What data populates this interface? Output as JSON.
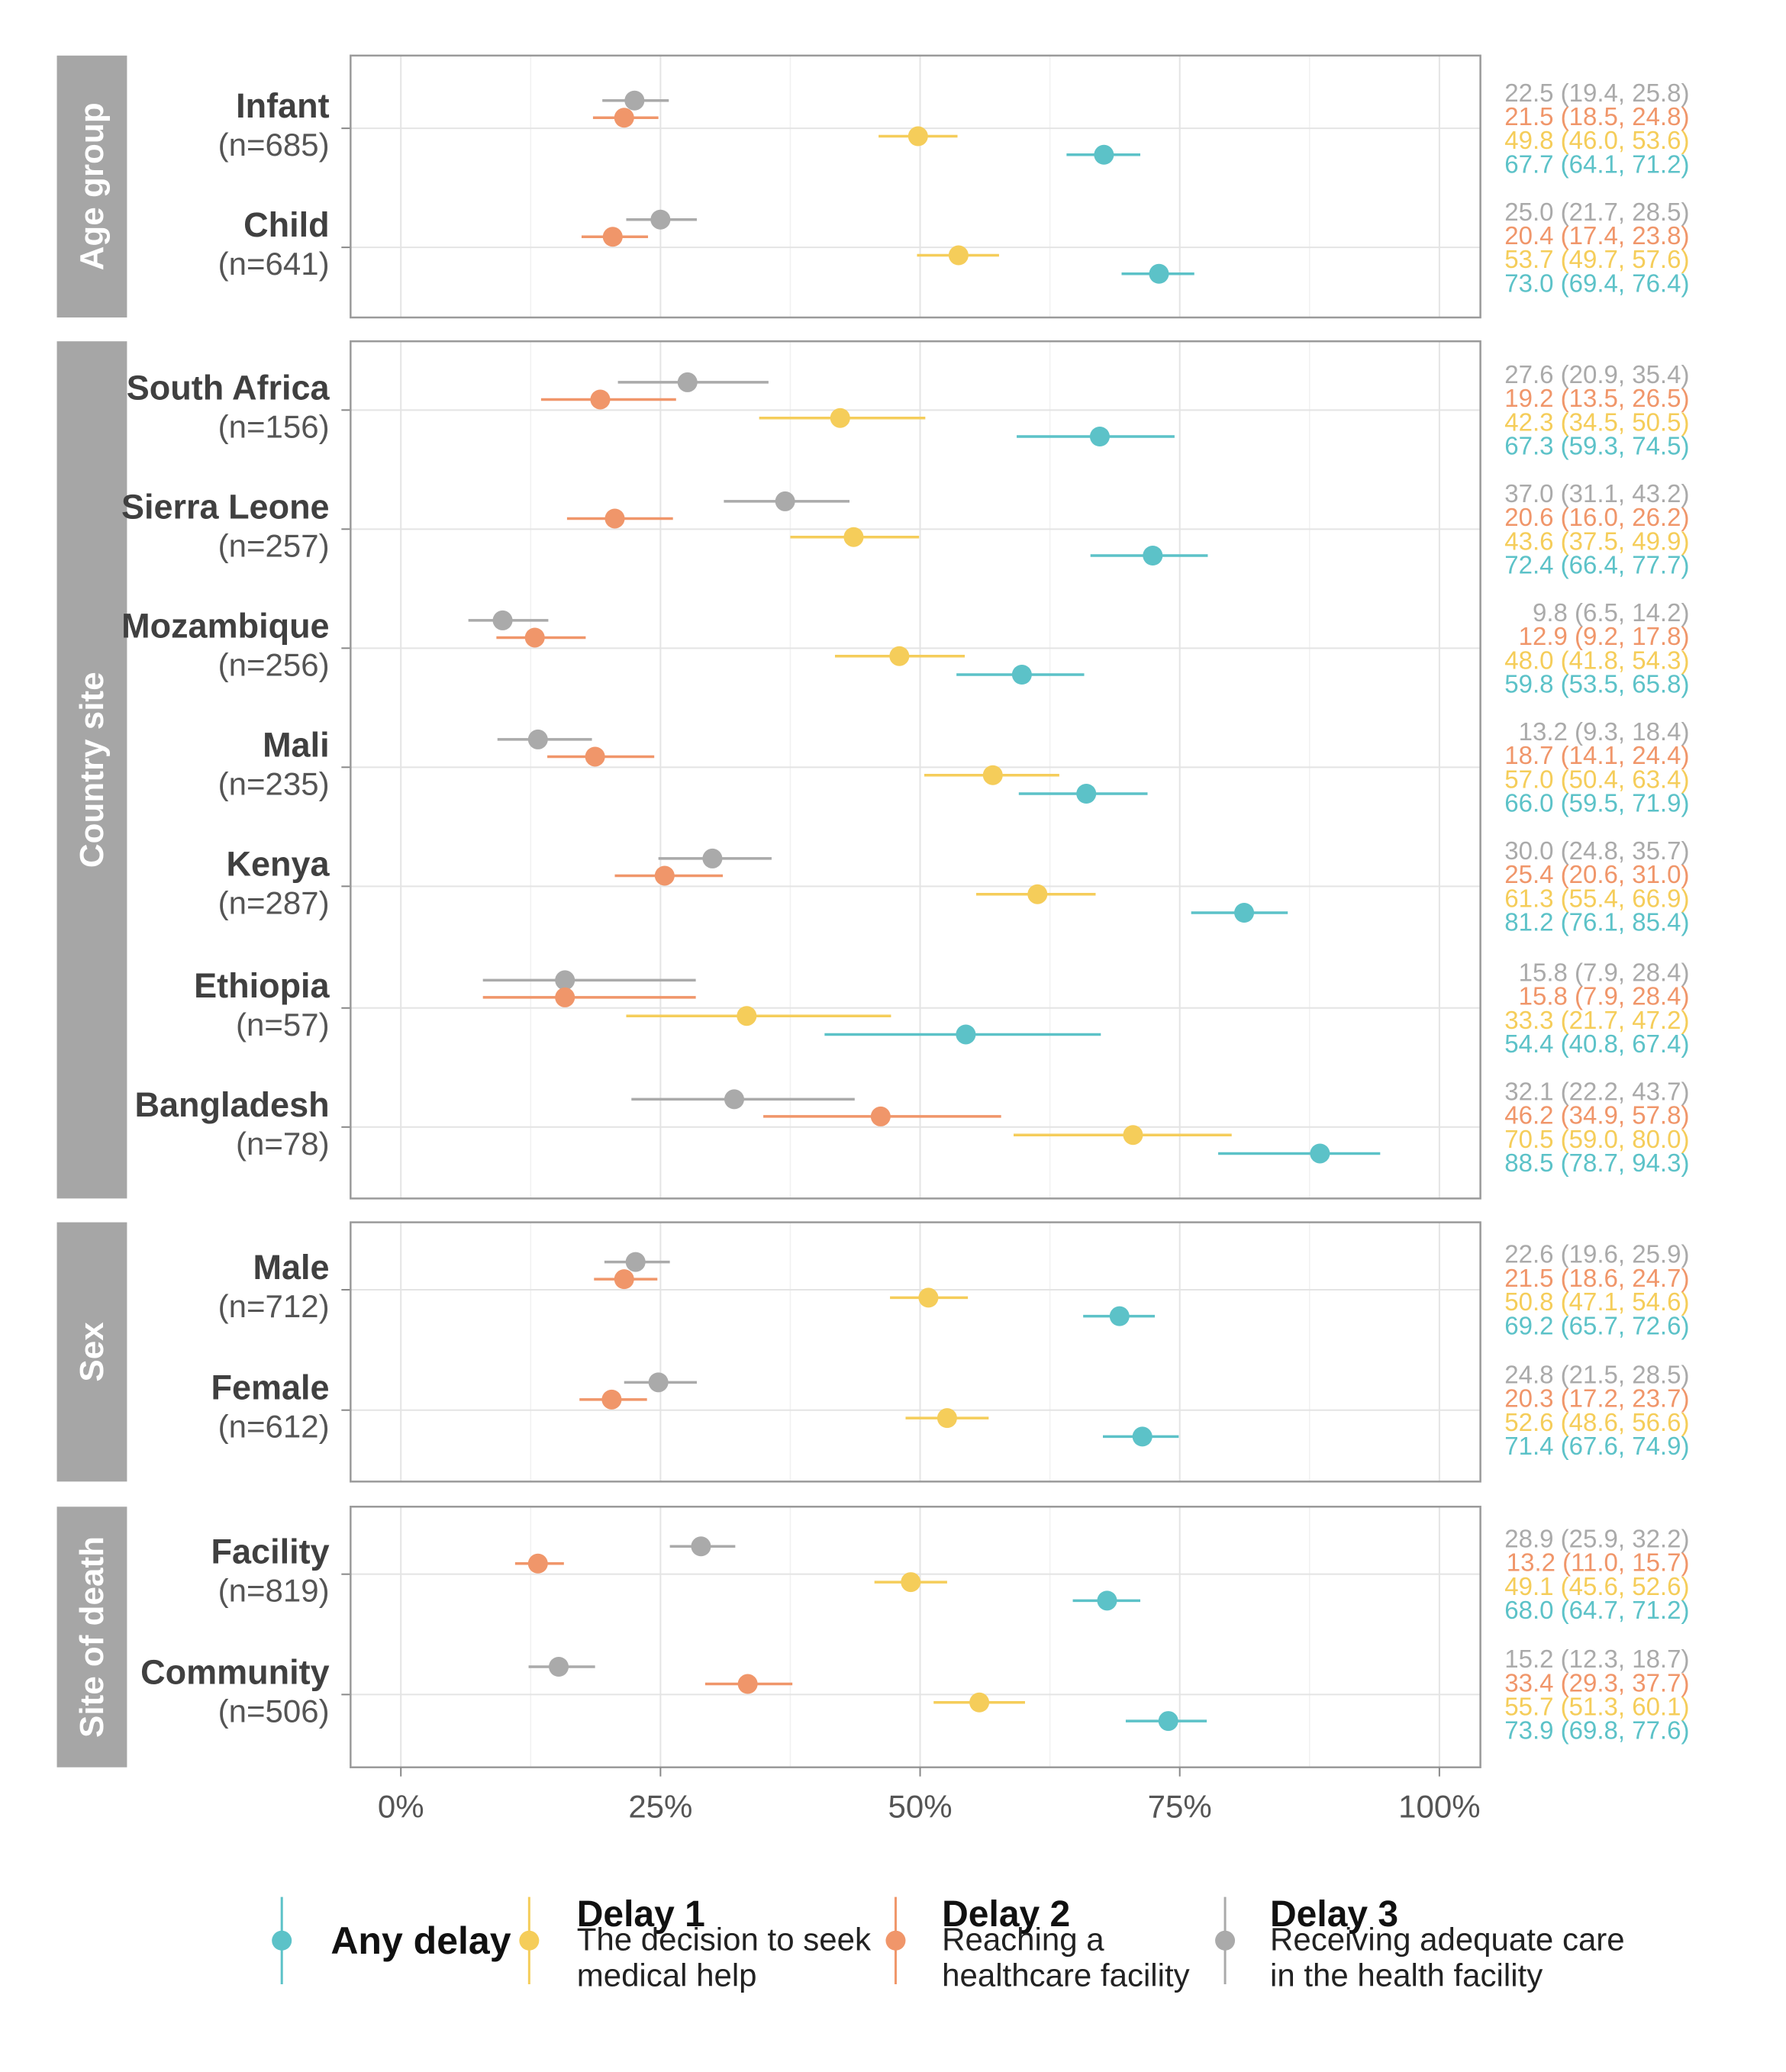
{
  "chart_data": {
    "type": "forest",
    "x_ticks": [
      "0%",
      "25%",
      "50%",
      "75%",
      "100%"
    ],
    "xlim": [
      0,
      100
    ],
    "grid": true,
    "legend_position": "bottom",
    "series": [
      {
        "key": "delay3",
        "name": "Delay 3",
        "description_lines": [
          "Receiving adequate care",
          "in the health facility"
        ],
        "color": "#aaaaaa"
      },
      {
        "key": "delay2",
        "name": "Delay 2",
        "description_lines": [
          "Reaching a",
          "healthcare facility"
        ],
        "color": "#f0966a"
      },
      {
        "key": "delay1",
        "name": "Delay 1",
        "description_lines": [
          "The decision to seek",
          "medical help"
        ],
        "color": "#f5cd5a"
      },
      {
        "key": "any",
        "name": "Any delay",
        "description_lines": [],
        "color": "#5cc2c8"
      }
    ],
    "legend_order": [
      "any",
      "delay1",
      "delay2",
      "delay3"
    ],
    "panels": [
      {
        "strip_label": "Age group",
        "groups": [
          {
            "name": "Infant",
            "n": "(n=685)",
            "estimates": [
              {
                "series": "delay3",
                "value": 22.5,
                "low": 19.4,
                "high": 25.8,
                "label": "22.5 (19.4, 25.8)"
              },
              {
                "series": "delay2",
                "value": 21.5,
                "low": 18.5,
                "high": 24.8,
                "label": "21.5 (18.5, 24.8)"
              },
              {
                "series": "delay1",
                "value": 49.8,
                "low": 46.0,
                "high": 53.6,
                "label": "49.8 (46.0, 53.6)"
              },
              {
                "series": "any",
                "value": 67.7,
                "low": 64.1,
                "high": 71.2,
                "label": "67.7 (64.1, 71.2)"
              }
            ]
          },
          {
            "name": "Child",
            "n": "(n=641)",
            "estimates": [
              {
                "series": "delay3",
                "value": 25.0,
                "low": 21.7,
                "high": 28.5,
                "label": "25.0 (21.7, 28.5)"
              },
              {
                "series": "delay2",
                "value": 20.4,
                "low": 17.4,
                "high": 23.8,
                "label": "20.4 (17.4, 23.8)"
              },
              {
                "series": "delay1",
                "value": 53.7,
                "low": 49.7,
                "high": 57.6,
                "label": "53.7 (49.7, 57.6)"
              },
              {
                "series": "any",
                "value": 73.0,
                "low": 69.4,
                "high": 76.4,
                "label": "73.0 (69.4, 76.4)"
              }
            ]
          }
        ]
      },
      {
        "strip_label": "Country site",
        "groups": [
          {
            "name": "South Africa",
            "n": "(n=156)",
            "estimates": [
              {
                "series": "delay3",
                "value": 27.6,
                "low": 20.9,
                "high": 35.4,
                "label": "27.6 (20.9, 35.4)"
              },
              {
                "series": "delay2",
                "value": 19.2,
                "low": 13.5,
                "high": 26.5,
                "label": "19.2 (13.5, 26.5)"
              },
              {
                "series": "delay1",
                "value": 42.3,
                "low": 34.5,
                "high": 50.5,
                "label": "42.3 (34.5, 50.5)"
              },
              {
                "series": "any",
                "value": 67.3,
                "low": 59.3,
                "high": 74.5,
                "label": "67.3 (59.3, 74.5)"
              }
            ]
          },
          {
            "name": "Sierra Leone",
            "n": "(n=257)",
            "estimates": [
              {
                "series": "delay3",
                "value": 37.0,
                "low": 31.1,
                "high": 43.2,
                "label": "37.0 (31.1, 43.2)"
              },
              {
                "series": "delay2",
                "value": 20.6,
                "low": 16.0,
                "high": 26.2,
                "label": "20.6 (16.0, 26.2)"
              },
              {
                "series": "delay1",
                "value": 43.6,
                "low": 37.5,
                "high": 49.9,
                "label": "43.6 (37.5, 49.9)"
              },
              {
                "series": "any",
                "value": 72.4,
                "low": 66.4,
                "high": 77.7,
                "label": "72.4 (66.4, 77.7)"
              }
            ]
          },
          {
            "name": "Mozambique",
            "n": "(n=256)",
            "estimates": [
              {
                "series": "delay3",
                "value": 9.8,
                "low": 6.5,
                "high": 14.2,
                "label": "9.8 (6.5, 14.2)"
              },
              {
                "series": "delay2",
                "value": 12.9,
                "low": 9.2,
                "high": 17.8,
                "label": "12.9 (9.2, 17.8)"
              },
              {
                "series": "delay1",
                "value": 48.0,
                "low": 41.8,
                "high": 54.3,
                "label": "48.0 (41.8, 54.3)"
              },
              {
                "series": "any",
                "value": 59.8,
                "low": 53.5,
                "high": 65.8,
                "label": "59.8 (53.5, 65.8)"
              }
            ]
          },
          {
            "name": "Mali",
            "n": "(n=235)",
            "estimates": [
              {
                "series": "delay3",
                "value": 13.2,
                "low": 9.3,
                "high": 18.4,
                "label": "13.2 (9.3, 18.4)"
              },
              {
                "series": "delay2",
                "value": 18.7,
                "low": 14.1,
                "high": 24.4,
                "label": "18.7 (14.1, 24.4)"
              },
              {
                "series": "delay1",
                "value": 57.0,
                "low": 50.4,
                "high": 63.4,
                "label": "57.0 (50.4, 63.4)"
              },
              {
                "series": "any",
                "value": 66.0,
                "low": 59.5,
                "high": 71.9,
                "label": "66.0 (59.5, 71.9)"
              }
            ]
          },
          {
            "name": "Kenya",
            "n": "(n=287)",
            "estimates": [
              {
                "series": "delay3",
                "value": 30.0,
                "low": 24.8,
                "high": 35.7,
                "label": "30.0 (24.8, 35.7)"
              },
              {
                "series": "delay2",
                "value": 25.4,
                "low": 20.6,
                "high": 31.0,
                "label": "25.4 (20.6, 31.0)"
              },
              {
                "series": "delay1",
                "value": 61.3,
                "low": 55.4,
                "high": 66.9,
                "label": "61.3 (55.4, 66.9)"
              },
              {
                "series": "any",
                "value": 81.2,
                "low": 76.1,
                "high": 85.4,
                "label": "81.2 (76.1, 85.4)"
              }
            ]
          },
          {
            "name": "Ethiopia",
            "n": "(n=57)",
            "estimates": [
              {
                "series": "delay3",
                "value": 15.8,
                "low": 7.9,
                "high": 28.4,
                "label": "15.8 (7.9, 28.4)"
              },
              {
                "series": "delay2",
                "value": 15.8,
                "low": 7.9,
                "high": 28.4,
                "label": "15.8 (7.9, 28.4)"
              },
              {
                "series": "delay1",
                "value": 33.3,
                "low": 21.7,
                "high": 47.2,
                "label": "33.3 (21.7, 47.2)"
              },
              {
                "series": "any",
                "value": 54.4,
                "low": 40.8,
                "high": 67.4,
                "label": "54.4 (40.8, 67.4)"
              }
            ]
          },
          {
            "name": "Bangladesh",
            "n": "(n=78)",
            "estimates": [
              {
                "series": "delay3",
                "value": 32.1,
                "low": 22.2,
                "high": 43.7,
                "label": "32.1 (22.2, 43.7)"
              },
              {
                "series": "delay2",
                "value": 46.2,
                "low": 34.9,
                "high": 57.8,
                "label": "46.2 (34.9, 57.8)"
              },
              {
                "series": "delay1",
                "value": 70.5,
                "low": 59.0,
                "high": 80.0,
                "label": "70.5 (59.0, 80.0)"
              },
              {
                "series": "any",
                "value": 88.5,
                "low": 78.7,
                "high": 94.3,
                "label": "88.5 (78.7, 94.3)"
              }
            ]
          }
        ]
      },
      {
        "strip_label": "Sex",
        "groups": [
          {
            "name": "Male",
            "n": "(n=712)",
            "estimates": [
              {
                "series": "delay3",
                "value": 22.6,
                "low": 19.6,
                "high": 25.9,
                "label": "22.6 (19.6, 25.9)"
              },
              {
                "series": "delay2",
                "value": 21.5,
                "low": 18.6,
                "high": 24.7,
                "label": "21.5 (18.6, 24.7)"
              },
              {
                "series": "delay1",
                "value": 50.8,
                "low": 47.1,
                "high": 54.6,
                "label": "50.8 (47.1, 54.6)"
              },
              {
                "series": "any",
                "value": 69.2,
                "low": 65.7,
                "high": 72.6,
                "label": "69.2 (65.7, 72.6)"
              }
            ]
          },
          {
            "name": "Female",
            "n": "(n=612)",
            "estimates": [
              {
                "series": "delay3",
                "value": 24.8,
                "low": 21.5,
                "high": 28.5,
                "label": "24.8 (21.5, 28.5)"
              },
              {
                "series": "delay2",
                "value": 20.3,
                "low": 17.2,
                "high": 23.7,
                "label": "20.3 (17.2, 23.7)"
              },
              {
                "series": "delay1",
                "value": 52.6,
                "low": 48.6,
                "high": 56.6,
                "label": "52.6 (48.6, 56.6)"
              },
              {
                "series": "any",
                "value": 71.4,
                "low": 67.6,
                "high": 74.9,
                "label": "71.4 (67.6, 74.9)"
              }
            ]
          }
        ]
      },
      {
        "strip_label": "Site of death",
        "groups": [
          {
            "name": "Facility",
            "n": "(n=819)",
            "estimates": [
              {
                "series": "delay3",
                "value": 28.9,
                "low": 25.9,
                "high": 32.2,
                "label": "28.9 (25.9, 32.2)"
              },
              {
                "series": "delay2",
                "value": 13.2,
                "low": 11.0,
                "high": 15.7,
                "label": "13.2 (11.0, 15.7)"
              },
              {
                "series": "delay1",
                "value": 49.1,
                "low": 45.6,
                "high": 52.6,
                "label": "49.1 (45.6, 52.6)"
              },
              {
                "series": "any",
                "value": 68.0,
                "low": 64.7,
                "high": 71.2,
                "label": "68.0 (64.7, 71.2)"
              }
            ]
          },
          {
            "name": "Community",
            "n": "(n=506)",
            "estimates": [
              {
                "series": "delay3",
                "value": 15.2,
                "low": 12.3,
                "high": 18.7,
                "label": "15.2 (12.3, 18.7)"
              },
              {
                "series": "delay2",
                "value": 33.4,
                "low": 29.3,
                "high": 37.7,
                "label": "33.4 (29.3, 37.7)"
              },
              {
                "series": "delay1",
                "value": 55.7,
                "low": 51.3,
                "high": 60.1,
                "label": "55.7 (51.3, 60.1)"
              },
              {
                "series": "any",
                "value": 73.9,
                "low": 69.8,
                "high": 77.6,
                "label": "73.9 (69.8, 77.6)"
              }
            ]
          }
        ]
      }
    ]
  }
}
